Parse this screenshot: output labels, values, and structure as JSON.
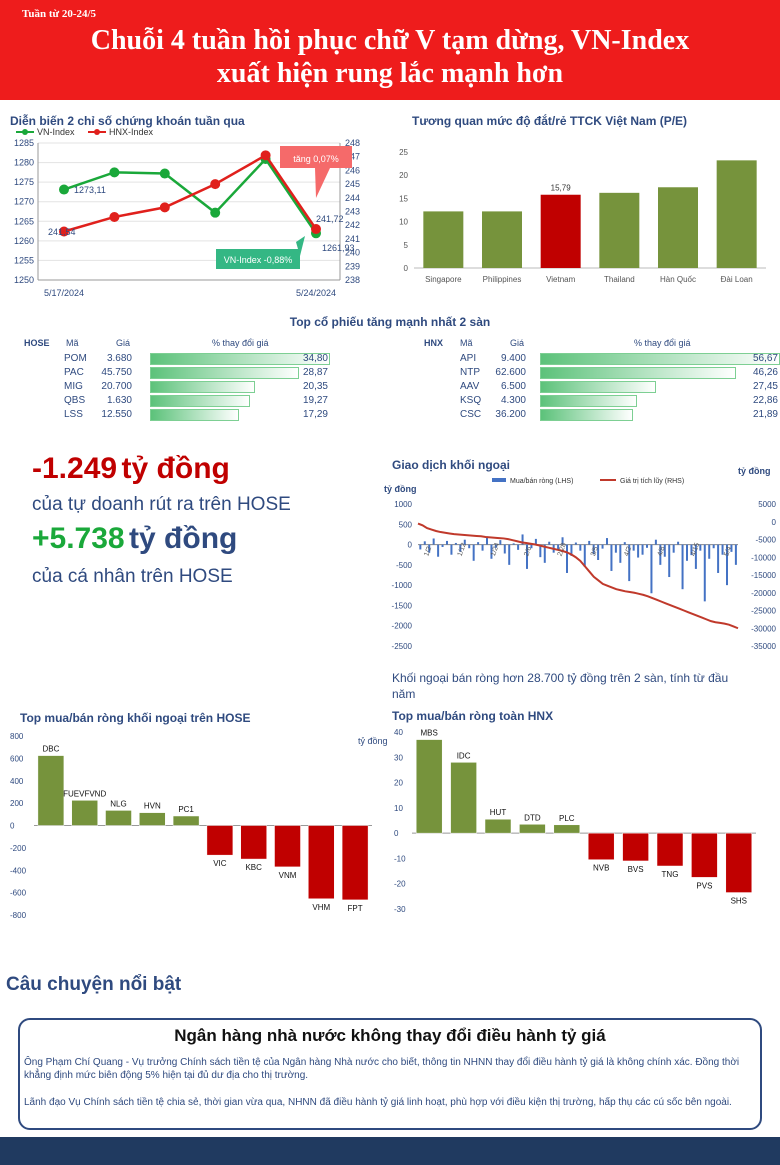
{
  "header": {
    "week_label": "Tuần từ 20-24/5",
    "headline_line1": "Chuỗi 4 tuần hồi phục chữ V tạm dừng, VN-Index",
    "headline_line2": "xuất hiện rung lắc mạnh hơn"
  },
  "index_chart": {
    "title": "Diễn biến 2 chỉ số chứng khoán tuần qua",
    "legend_vn": "VN-Index",
    "legend_hnx": "HNX-Index",
    "annot_up": "tăng 0,07%",
    "annot_down": "VN-Index -0,88%",
    "label_vn_start": "1273,11",
    "label_vn_end": "1261,93",
    "label_hnx_start": "241,54",
    "label_hnx_end": "241,72",
    "x_start": "5/17/2024",
    "x_end": "5/24/2024"
  },
  "pe_chart": {
    "title": "Tương quan mức độ đắt/rẻ TTCK Việt Nam (P/E)",
    "vietnam_label": "15,79"
  },
  "top_stocks": {
    "title": "Top cổ phiếu tăng mạnh nhất 2 sàn",
    "hose": {
      "exchange": "HOSE",
      "col_code": "Mã",
      "col_price": "Giá",
      "col_change": "% thay đổi giá",
      "rows": [
        {
          "code": "POM",
          "price": "3.680",
          "change": "34,80",
          "value": 34.8
        },
        {
          "code": "PAC",
          "price": "45.750",
          "change": "28,87",
          "value": 28.87
        },
        {
          "code": "MIG",
          "price": "20.700",
          "change": "20,35",
          "value": 20.35
        },
        {
          "code": "QBS",
          "price": "1.630",
          "change": "19,27",
          "value": 19.27
        },
        {
          "code": "LSS",
          "price": "12.550",
          "change": "17,29",
          "value": 17.29
        }
      ]
    },
    "hnx": {
      "exchange": "HNX",
      "col_code": "Mã",
      "col_price": "Giá",
      "col_change": "% thay đổi giá",
      "rows": [
        {
          "code": "API",
          "price": "9.400",
          "change": "56,67",
          "value": 56.67
        },
        {
          "code": "NTP",
          "price": "62.600",
          "change": "46,26",
          "value": 46.26
        },
        {
          "code": "AAV",
          "price": "6.500",
          "change": "27,45",
          "value": 27.45
        },
        {
          "code": "KSQ",
          "price": "4.300",
          "change": "22,86",
          "value": 22.86
        },
        {
          "code": "CSC",
          "price": "36.200",
          "change": "21,89",
          "value": 21.89
        }
      ]
    }
  },
  "highlights": {
    "prop_value": "-1.249",
    "prop_unit": "tỷ đồng",
    "prop_desc": "của tự doanh rút ra trên HOSE",
    "retail_value": "+5.738",
    "retail_unit": "tỷ đồng",
    "retail_desc": "của cá nhân trên HOSE"
  },
  "foreign_chart": {
    "title": "Giao dịch khối ngoại",
    "left_unit": "tỷ đồng",
    "right_unit": "tỷ đồng",
    "legend_bar": "Mua/bán ròng (LHS)",
    "legend_line": "Giá trị tích lũy (RHS)",
    "left_ticks": [
      "1000",
      "500",
      "0",
      "-500",
      "-1000",
      "-1500",
      "-2000",
      "-2500"
    ],
    "right_ticks": [
      "5000",
      "0",
      "-5000",
      "-10000",
      "-15000",
      "-20000",
      "-25000",
      "-30000",
      "-35000"
    ],
    "x_ticks": [
      "1/2",
      "1/12",
      "1/24",
      "2/6",
      "2/28",
      "3/5",
      "4/2",
      "4/8",
      "4/15",
      "5/4"
    ],
    "caption": "Khối ngoại bán ròng hơn 28.700 tỷ đồng trên 2 sàn, tính từ đầu năm"
  },
  "hose_foreign": {
    "title": "Top mua/bán ròng khối ngoại trên HOSE",
    "unit": "tỷ đồng"
  },
  "hnx_foreign": {
    "title": "Top mua/bán ròng toàn HNX"
  },
  "story": {
    "section_title": "Câu chuyện nổi bật",
    "headline": "Ngân hàng nhà nước không thay đổi điều hành tỷ giá",
    "para1": "Ông Phạm Chí Quang - Vụ trưởng Chính sách tiền tệ của Ngân hàng Nhà nước cho biết, thông tin NHNN thay đổi điều hành tỷ giá là không chính xác. Đồng thời khẳng định mức biên động 5% hiện tại đủ dư địa cho thị trường.",
    "para2": "Lãnh đạo Vụ Chính sách tiền tệ chia sẻ, thời gian vừa qua, NHNN đã điều hành tỷ giá linh hoạt, phù hợp với điều kiện thị trường, hấp thụ các cú sốc bên ngoài."
  },
  "colors": {
    "red": "#ee1c1c",
    "green_bar": "#76933c",
    "red_bar": "#c00000",
    "navy": "#2f4a7f",
    "vn_line": "#1aa83a",
    "hnx_line": "#e0201c"
  },
  "chart_data": [
    {
      "type": "line",
      "title": "Diễn biến 2 chỉ số chứng khoán tuần qua",
      "x": [
        "5/17/2024",
        "5/20/2024",
        "5/21/2024",
        "5/22/2024",
        "5/23/2024",
        "5/24/2024"
      ],
      "series": [
        {
          "name": "VN-Index",
          "axis": "left",
          "values": [
            1273.11,
            1277.5,
            1277.2,
            1267.2,
            1280.9,
            1261.93
          ]
        },
        {
          "name": "HNX-Index",
          "axis": "right",
          "values": [
            241.54,
            242.6,
            243.3,
            245.0,
            247.1,
            241.72
          ]
        }
      ],
      "ylim_left": [
        1250,
        1285
      ],
      "ylim_right": [
        238,
        248
      ],
      "left_ticks": [
        1250,
        1255,
        1260,
        1265,
        1270,
        1275,
        1280,
        1285
      ],
      "right_ticks": [
        238,
        239,
        240,
        241,
        242,
        243,
        244,
        245,
        246,
        247,
        248
      ]
    },
    {
      "type": "bar",
      "title": "Tương quan mức độ đắt/rẻ TTCK Việt Nam (P/E)",
      "categories": [
        "Singapore",
        "Philippines",
        "Vietnam",
        "Thailand",
        "Hàn Quốc",
        "Đài Loan"
      ],
      "values": [
        12.2,
        12.2,
        15.79,
        16.2,
        17.4,
        23.2
      ],
      "ylim": [
        0,
        25
      ],
      "ticks": [
        0,
        5,
        10,
        15,
        20,
        25
      ]
    },
    {
      "type": "bar",
      "title": "Giao dịch khối ngoại",
      "series": [
        {
          "name": "Mua/bán ròng (LHS)",
          "axis": "left",
          "values": [
            -120,
            80,
            -200,
            150,
            -300,
            -60,
            90,
            -250,
            40,
            -180,
            120,
            -90,
            -400,
            60,
            -150,
            200,
            -350,
            -80,
            110,
            -220,
            -500,
            30,
            -130,
            250,
            -600,
            -90,
            140,
            -310,
            -450,
            70,
            -200,
            -120,
            180,
            -700,
            -280,
            50,
            -150,
            -550,
            90,
            -240,
            -380,
            -100,
            160,
            -650,
            -200,
            -450,
            60,
            -900,
            -150,
            -320,
            -250,
            -80,
            -1200,
            120,
            -500,
            -300,
            -800,
            -200,
            70,
            -1100,
            -400,
            -260,
            -600,
            -150,
            -1400,
            -350,
            -90,
            -700,
            -250,
            -1000,
            -180,
            -500
          ]
        },
        {
          "name": "Giá trị tích lũy (RHS)",
          "axis": "right",
          "values": [
            -500,
            -1000,
            -1800,
            -2200,
            -2600,
            -2900,
            -3100,
            -3300,
            -3500,
            -3600,
            -3700,
            -3800,
            -3900,
            -4000,
            -4100,
            -4300,
            -4400,
            -4500,
            -4600,
            -4700,
            -4900,
            -5200,
            -5500,
            -5800,
            -6000,
            -6200,
            -6400,
            -6700,
            -7000,
            -7300,
            -7600,
            -7900,
            -8200,
            -8600,
            -9200,
            -10000,
            -11000,
            -12500,
            -14000,
            -15500,
            -16500,
            -17500,
            -18000,
            -18500,
            -19000,
            -19300,
            -19600,
            -19800,
            -20000,
            -20300,
            -20600,
            -21000,
            -21500,
            -22000,
            -22500,
            -23000,
            -23500,
            -24000,
            -24500,
            -25000,
            -25500,
            -26000,
            -26500,
            -27000,
            -27500,
            -28000,
            -28300,
            -28500,
            -28700,
            -29000,
            -29500,
            -30000
          ]
        }
      ],
      "ylim_left": [
        -2500,
        1000
      ],
      "ylim_right": [
        -35000,
        5000
      ]
    },
    {
      "type": "bar",
      "title": "Top mua/bán ròng khối ngoại trên HOSE",
      "categories": [
        "DBC",
        "FUEVFVND",
        "NLG",
        "HVN",
        "PC1",
        "VIC",
        "KBC",
        "VNM",
        "VHM",
        "FPT"
      ],
      "values": [
        625,
        225,
        135,
        115,
        85,
        -265,
        -300,
        -370,
        -655,
        -665
      ],
      "ylim": [
        -800,
        800
      ],
      "ticks": [
        -800,
        -600,
        -400,
        -200,
        0,
        200,
        400,
        600,
        800
      ]
    },
    {
      "type": "bar",
      "title": "Top mua/bán ròng toàn HNX",
      "categories": [
        "MBS",
        "IDC",
        "HUT",
        "DTD",
        "PLC",
        "NVB",
        "BVS",
        "TNG",
        "PVS",
        "SHS"
      ],
      "values": [
        37,
        28,
        5.5,
        3.5,
        3.3,
        -10.5,
        -11,
        -13,
        -17.5,
        -23.5
      ],
      "ylim": [
        -30,
        40
      ],
      "ticks": [
        -30,
        -20,
        -10,
        0,
        10,
        20,
        30,
        40
      ]
    }
  ]
}
